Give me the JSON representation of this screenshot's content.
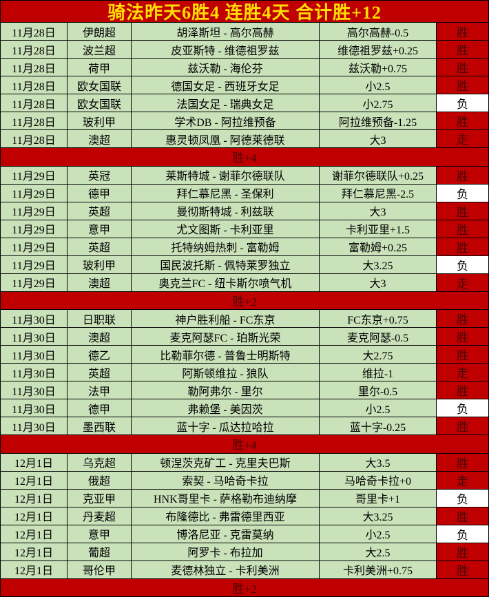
{
  "header": {
    "title": "骑法昨天6胜4 连胜4天 合计胜+12"
  },
  "legend": {
    "win": "胜",
    "loss": "负",
    "push": "走"
  },
  "colors": {
    "red": "#c00000",
    "green": "#c9e2ba",
    "yellow": "#ffe000",
    "dark_red_text": "#4a0606",
    "loss_bg": "#ffffff",
    "grid_line": "#000000"
  },
  "columns": [
    "date",
    "league",
    "match",
    "pick",
    "result"
  ],
  "sections": [
    {
      "summary": "胜+4",
      "rows": [
        {
          "date": "11月28日",
          "league": "伊朗超",
          "match": "胡泽斯坦 - 高尔高赫",
          "pick": "高尔高赫-0.5",
          "result": "胜"
        },
        {
          "date": "11月28日",
          "league": "波兰超",
          "match": "皮亚斯特 - 维德祖罗兹",
          "pick": "维德祖罗兹+0.25",
          "result": "胜"
        },
        {
          "date": "11月28日",
          "league": "荷甲",
          "match": "兹沃勒 - 海伦芬",
          "pick": "兹沃勒+0.75",
          "result": "胜"
        },
        {
          "date": "11月28日",
          "league": "欧女国联",
          "match": "德国女足 - 西班牙女足",
          "pick": "小2.5",
          "result": "胜"
        },
        {
          "date": "11月28日",
          "league": "欧女国联",
          "match": "法国女足 - 瑞典女足",
          "pick": "小2.75",
          "result": "负"
        },
        {
          "date": "11月28日",
          "league": "玻利甲",
          "match": "学术DB - 阿拉维预备",
          "pick": "阿拉维预备-1.25",
          "result": "胜"
        },
        {
          "date": "11月28日",
          "league": "澳超",
          "match": "惠灵顿凤凰 - 阿德莱德联",
          "pick": "大3",
          "result": "走"
        }
      ]
    },
    {
      "summary": "胜+2",
      "rows": [
        {
          "date": "11月29日",
          "league": "英冠",
          "match": "莱斯特城 - 谢菲尔德联队",
          "pick": "谢菲尔德联队+0.25",
          "result": "胜"
        },
        {
          "date": "11月29日",
          "league": "德甲",
          "match": "拜仁慕尼黑 - 圣保利",
          "pick": "拜仁慕尼黑-2.5",
          "result": "负"
        },
        {
          "date": "11月29日",
          "league": "英超",
          "match": "曼彻斯特城 - 利兹联",
          "pick": "大3",
          "result": "胜"
        },
        {
          "date": "11月29日",
          "league": "意甲",
          "match": "尤文图斯 - 卡利亚里",
          "pick": "卡利亚里+1.5",
          "result": "胜"
        },
        {
          "date": "11月29日",
          "league": "英超",
          "match": "托特纳姆热刺 - 富勒姆",
          "pick": "富勒姆+0.25",
          "result": "胜"
        },
        {
          "date": "11月29日",
          "league": "玻利甲",
          "match": "国民波托斯 - 佩特莱罗独立",
          "pick": "大3.25",
          "result": "负"
        },
        {
          "date": "11月29日",
          "league": "澳超",
          "match": "奥克兰FC - 纽卡斯尔喷气机",
          "pick": "大3",
          "result": "走"
        }
      ]
    },
    {
      "summary": "胜+4",
      "rows": [
        {
          "date": "11月30日",
          "league": "日职联",
          "match": "神户胜利船 - FC东京",
          "pick": "FC东京+0.75",
          "result": "胜"
        },
        {
          "date": "11月30日",
          "league": "澳超",
          "match": "麦克阿瑟FC - 珀斯光荣",
          "pick": "麦克阿瑟-0.5",
          "result": "胜"
        },
        {
          "date": "11月30日",
          "league": "德乙",
          "match": "比勒菲尔德 - 普鲁士明斯特",
          "pick": "大2.75",
          "result": "胜"
        },
        {
          "date": "11月30日",
          "league": "英超",
          "match": "阿斯顿维拉 - 狼队",
          "pick": "维拉-1",
          "result": "走"
        },
        {
          "date": "11月30日",
          "league": "法甲",
          "match": "勒阿弗尔 - 里尔",
          "pick": "里尔-0.5",
          "result": "胜"
        },
        {
          "date": "11月30日",
          "league": "德甲",
          "match": "弗赖堡 - 美因茨",
          "pick": "小2.5",
          "result": "负"
        },
        {
          "date": "11月30日",
          "league": "墨西联",
          "match": "蓝十字 - 瓜达拉哈拉",
          "pick": "蓝十字-0.25",
          "result": "胜"
        }
      ]
    },
    {
      "summary": "胜+2",
      "rows": [
        {
          "date": "12月1日",
          "league": "乌克超",
          "match": "顿涅茨克矿工 - 克里夫巴斯",
          "pick": "大3.5",
          "result": "胜"
        },
        {
          "date": "12月1日",
          "league": "俄超",
          "match": "索契 - 马哈奇卡拉",
          "pick": "马哈奇卡拉+0",
          "result": "走"
        },
        {
          "date": "12月1日",
          "league": "克亚甲",
          "match": "HNK哥里卡 - 萨格勒布迪纳摩",
          "pick": "哥里卡+1",
          "result": "负"
        },
        {
          "date": "12月1日",
          "league": "丹麦超",
          "match": "布隆德比 - 弗雷德里西亚",
          "pick": "大3.25",
          "result": "胜"
        },
        {
          "date": "12月1日",
          "league": "意甲",
          "match": "博洛尼亚 - 克雷莫纳",
          "pick": "小2.5",
          "result": "负"
        },
        {
          "date": "12月1日",
          "league": "葡超",
          "match": "阿罗卡 - 布拉加",
          "pick": "大2.5",
          "result": "胜"
        },
        {
          "date": "12月1日",
          "league": "哥伦甲",
          "match": "麦德林独立 - 卡利美洲",
          "pick": "卡利美洲+0.75",
          "result": "胜"
        }
      ]
    }
  ]
}
